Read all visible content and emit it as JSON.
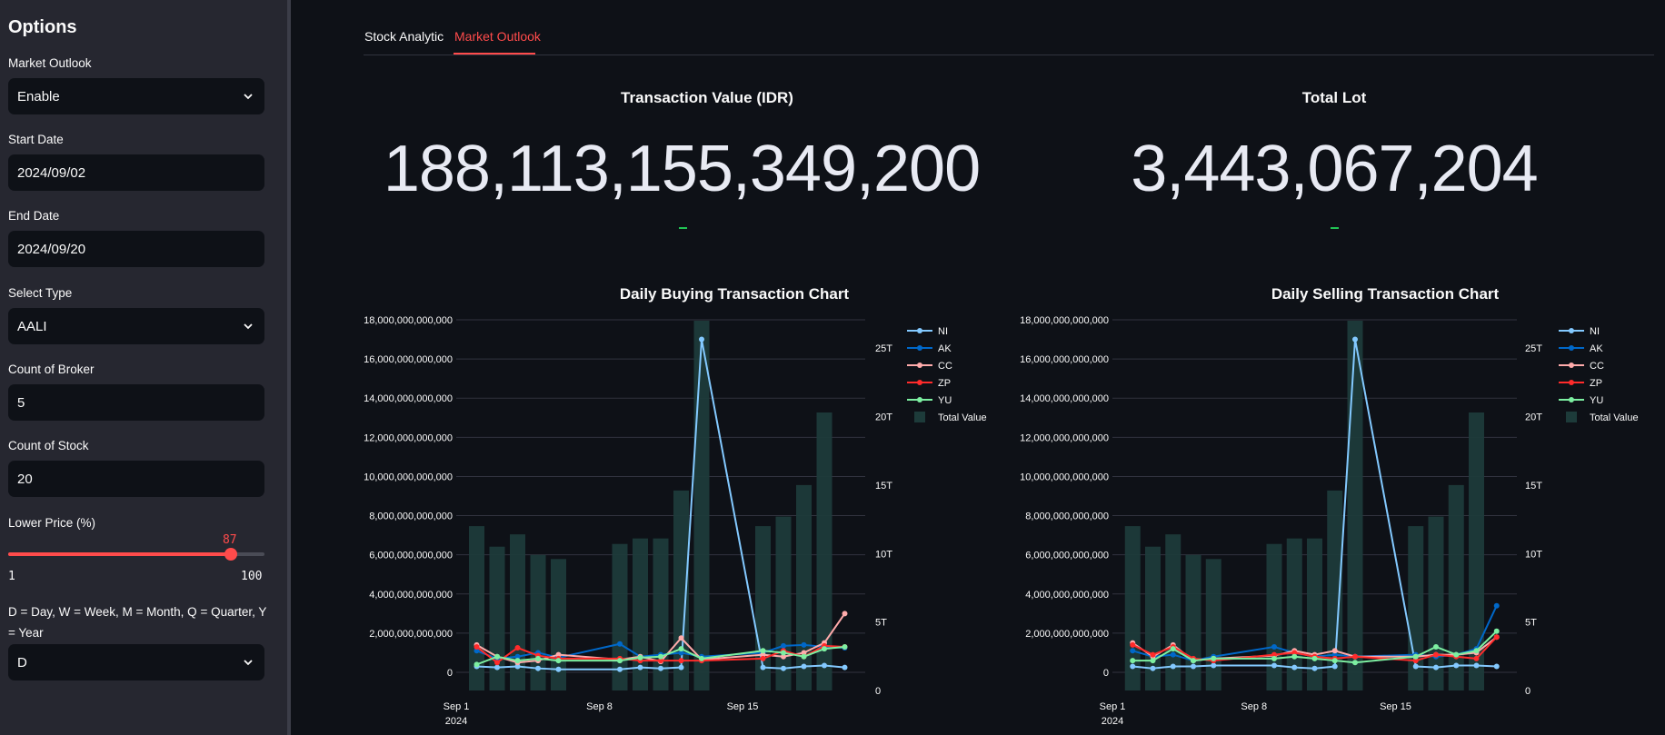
{
  "sidebar": {
    "title": "Options",
    "market_outlook": {
      "label": "Market Outlook",
      "value": "Enable"
    },
    "start_date": {
      "label": "Start Date",
      "value": "2024/09/02"
    },
    "end_date": {
      "label": "End Date",
      "value": "2024/09/20"
    },
    "select_type": {
      "label": "Select Type",
      "value": "AALI"
    },
    "broker_count": {
      "label": "Count of Broker",
      "value": "5"
    },
    "stock_count": {
      "label": "Count of Stock",
      "value": "20"
    },
    "lower_price": {
      "label": "Lower Price (%)",
      "value": 87,
      "min": "1",
      "max": "100",
      "value_text": "87"
    },
    "period": {
      "label": "D = Day, W = Week, M = Month, Q = Quarter, Y = Year",
      "value": "D"
    }
  },
  "tabs": [
    {
      "label": "Stock Analytic",
      "active": false
    },
    {
      "label": "Market Outlook",
      "active": true
    }
  ],
  "metrics": {
    "transaction_value": {
      "label": "Transaction Value (IDR)",
      "value": "188,113,155,349,200"
    },
    "total_lot": {
      "label": "Total Lot",
      "value": "3,443,067,204"
    }
  },
  "colors": {
    "accent": "#ff4b4b",
    "NI": "#83c9ff",
    "AK": "#0068c9",
    "CC": "#ffabab",
    "ZP": "#ff2b2b",
    "YU": "#7defa1",
    "bar": "#1d3b3a"
  },
  "chart_data": [
    {
      "type": "line",
      "title": "Daily Buying Transaction Chart",
      "x_ticks": [
        "Sep 1",
        "Sep 8",
        "Sep 15"
      ],
      "x_year": "2024",
      "dates": [
        "2024-09-02",
        "2024-09-03",
        "2024-09-04",
        "2024-09-05",
        "2024-09-06",
        "2024-09-09",
        "2024-09-10",
        "2024-09-11",
        "2024-09-12",
        "2024-09-13",
        "2024-09-16",
        "2024-09-17",
        "2024-09-18",
        "2024-09-19",
        "2024-09-20"
      ],
      "y_ticks": [
        "0",
        "2,000,000,000,000",
        "4,000,000,000,000",
        "6,000,000,000,000",
        "8,000,000,000,000",
        "10,000,000,000,000",
        "12,000,000,000,000",
        "14,000,000,000,000",
        "16,000,000,000,000",
        "18,000,000,000,000"
      ],
      "y_range": [
        0,
        18000000000000
      ],
      "y2_ticks": [
        "0",
        "5T",
        "10T",
        "15T",
        "20T",
        "25T"
      ],
      "y2_range": [
        0,
        27000000000000
      ],
      "series": [
        {
          "name": "NI",
          "values": [
            300000000000.0,
            250000000000.0,
            300000000000.0,
            200000000000.0,
            150000000000.0,
            150000000000.0,
            250000000000.0,
            200000000000.0,
            250000000000.0,
            17000000000000.0,
            250000000000.0,
            200000000000.0,
            300000000000.0,
            350000000000.0,
            250000000000.0
          ]
        },
        {
          "name": "AK",
          "values": [
            1100000000000.0,
            700000000000.0,
            800000000000.0,
            1000000000000.0,
            750000000000.0,
            1450000000000.0,
            800000000000.0,
            900000000000.0,
            1000000000000.0,
            800000000000.0,
            1000000000000.0,
            1350000000000.0,
            1400000000000.0,
            1300000000000.0,
            1250000000000.0
          ]
        },
        {
          "name": "CC",
          "values": [
            1400000000000.0,
            800000000000.0,
            500000000000.0,
            600000000000.0,
            900000000000.0,
            650000000000.0,
            800000000000.0,
            550000000000.0,
            1750000000000.0,
            650000000000.0,
            900000000000.0,
            800000000000.0,
            1000000000000.0,
            1500000000000.0,
            3000000000000.0
          ]
        },
        {
          "name": "ZP",
          "values": [
            1300000000000.0,
            500000000000.0,
            1250000000000.0,
            850000000000.0,
            700000000000.0,
            700000000000.0,
            600000000000.0,
            600000000000.0,
            600000000000.0,
            600000000000.0,
            700000000000.0,
            1100000000000.0,
            800000000000.0,
            1350000000000.0,
            1300000000000.0
          ]
        },
        {
          "name": "YU",
          "values": [
            400000000000.0,
            800000000000.0,
            600000000000.0,
            700000000000.0,
            600000000000.0,
            600000000000.0,
            750000000000.0,
            800000000000.0,
            1200000000000.0,
            700000000000.0,
            1100000000000.0,
            1000000000000.0,
            800000000000.0,
            1200000000000.0,
            1300000000000.0
          ]
        }
      ],
      "bars": {
        "name": "Total Value",
        "values": [
          12000000000000.0,
          10500000000000.0,
          11400000000000.0,
          9900000000000.0,
          9600000000000.0,
          10700000000000.0,
          11100000000000.0,
          11100000000000.0,
          14600000000000.0,
          27000000000000.0,
          12000000000000.0,
          12700000000000.0,
          15000000000000.0,
          20300000000000.0,
          0
        ]
      }
    },
    {
      "type": "line",
      "title": "Daily Selling Transaction Chart",
      "x_ticks": [
        "Sep 1",
        "Sep 8",
        "Sep 15"
      ],
      "x_year": "2024",
      "dates": [
        "2024-09-02",
        "2024-09-03",
        "2024-09-04",
        "2024-09-05",
        "2024-09-06",
        "2024-09-09",
        "2024-09-10",
        "2024-09-11",
        "2024-09-12",
        "2024-09-13",
        "2024-09-16",
        "2024-09-17",
        "2024-09-18",
        "2024-09-19",
        "2024-09-20"
      ],
      "y_ticks": [
        "0",
        "2,000,000,000,000",
        "4,000,000,000,000",
        "6,000,000,000,000",
        "8,000,000,000,000",
        "10,000,000,000,000",
        "12,000,000,000,000",
        "14,000,000,000,000",
        "16,000,000,000,000",
        "18,000,000,000,000"
      ],
      "y_range": [
        0,
        18000000000000
      ],
      "y2_ticks": [
        "0",
        "5T",
        "10T",
        "15T",
        "20T",
        "25T"
      ],
      "y2_range": [
        0,
        27000000000000
      ],
      "series": [
        {
          "name": "NI",
          "values": [
            300000000000.0,
            200000000000.0,
            300000000000.0,
            300000000000.0,
            350000000000.0,
            350000000000.0,
            250000000000.0,
            200000000000.0,
            300000000000.0,
            17000000000000.0,
            300000000000.0,
            250000000000.0,
            350000000000.0,
            350000000000.0,
            300000000000.0
          ]
        },
        {
          "name": "AK",
          "values": [
            1100000000000.0,
            800000000000.0,
            900000000000.0,
            600000000000.0,
            800000000000.0,
            1300000000000.0,
            1000000000000.0,
            800000000000.0,
            900000000000.0,
            800000000000.0,
            900000000000.0,
            800000000000.0,
            900000000000.0,
            1200000000000.0,
            3400000000000.0
          ]
        },
        {
          "name": "CC",
          "values": [
            1500000000000.0,
            800000000000.0,
            1400000000000.0,
            600000000000.0,
            700000000000.0,
            850000000000.0,
            1100000000000.0,
            900000000000.0,
            1100000000000.0,
            800000000000.0,
            800000000000.0,
            900000000000.0,
            900000000000.0,
            1000000000000.0,
            1800000000000.0
          ]
        },
        {
          "name": "ZP",
          "values": [
            1400000000000.0,
            900000000000.0,
            1300000000000.0,
            700000000000.0,
            600000000000.0,
            900000000000.0,
            1000000000000.0,
            800000000000.0,
            700000000000.0,
            800000000000.0,
            600000000000.0,
            900000000000.0,
            800000000000.0,
            700000000000.0,
            1800000000000.0
          ]
        },
        {
          "name": "YU",
          "values": [
            600000000000.0,
            600000000000.0,
            1200000000000.0,
            600000000000.0,
            700000000000.0,
            700000000000.0,
            800000000000.0,
            700000000000.0,
            600000000000.0,
            500000000000.0,
            800000000000.0,
            1300000000000.0,
            900000000000.0,
            1100000000000.0,
            2100000000000.0
          ]
        }
      ],
      "bars": {
        "name": "Total Value",
        "values": [
          12000000000000.0,
          10500000000000.0,
          11400000000000.0,
          9900000000000.0,
          9600000000000.0,
          10700000000000.0,
          11100000000000.0,
          11100000000000.0,
          14600000000000.0,
          27000000000000.0,
          12000000000000.0,
          12700000000000.0,
          15000000000000.0,
          20300000000000.0,
          0
        ]
      }
    }
  ]
}
